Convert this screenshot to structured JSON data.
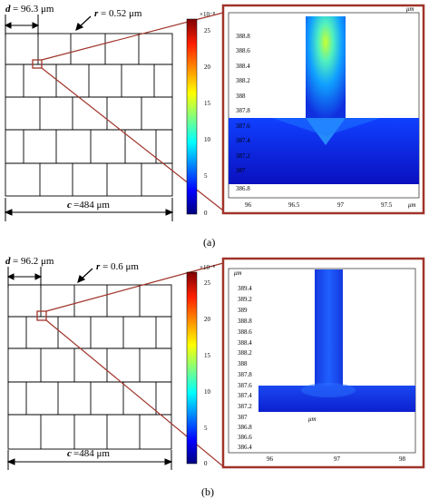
{
  "panel_a": {
    "d_label": "d",
    "d_value": "= 96.3 μm",
    "r_label": "r",
    "r_value": "= 0.52 μm",
    "c_label": "c",
    "c_value": "=484 μm",
    "caption": "(a)",
    "colorbar_exponent": "×10⁻⁸",
    "colorbar_ticks": [
      "25",
      "20",
      "15",
      "10",
      "5",
      "0"
    ],
    "zoom_unit": "μm",
    "zoom_y_ticks": [
      "388.8",
      "388.6",
      "388.4",
      "388.2",
      "388",
      "387.8",
      "387.6",
      "387.4",
      "387.2",
      "387",
      "386.8"
    ],
    "zoom_x_ticks": [
      "96",
      "96.5",
      "97",
      "97.5"
    ]
  },
  "panel_b": {
    "d_label": "d",
    "d_value": "= 96.2 μm",
    "r_label": "r",
    "r_value": "= 0.6 μm",
    "c_label": "c",
    "c_value": "=484 μm",
    "caption": "(b)",
    "colorbar_exponent": "×10⁻⁸",
    "colorbar_ticks": [
      "25",
      "20",
      "15",
      "10",
      "5",
      "0"
    ],
    "zoom_unit": "μm",
    "zoom_y_ticks": [
      "389.4",
      "389.2",
      "389",
      "388.8",
      "388.6",
      "388.4",
      "388.2",
      "388",
      "387.8",
      "387.6",
      "387.4",
      "387.2",
      "387",
      "386.8",
      "386.6",
      "386.4"
    ],
    "zoom_x_ticks": [
      "96",
      "97",
      "98"
    ]
  },
  "colors": {
    "frame": "#a0342a",
    "cell_line": "#000000",
    "jet": [
      "#00007f",
      "#0000ff",
      "#00ffff",
      "#ffff00",
      "#ff7f00",
      "#7f0000"
    ]
  }
}
